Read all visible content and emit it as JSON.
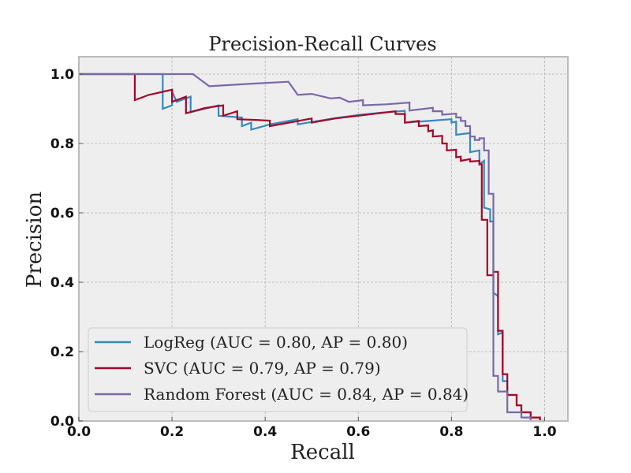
{
  "chart_data": {
    "type": "line",
    "title": "Precision-Recall Curves",
    "xlabel": "Recall",
    "ylabel": "Precision",
    "xlim": [
      0,
      1.05
    ],
    "ylim": [
      0,
      1.05
    ],
    "xticks": [
      0.0,
      0.2,
      0.4,
      0.6,
      0.8,
      1.0
    ],
    "yticks": [
      0.0,
      0.2,
      0.4,
      0.6,
      0.8,
      1.0
    ],
    "xtick_labels": [
      "0.0",
      "0.2",
      "0.4",
      "0.6",
      "0.8",
      "1.0"
    ],
    "ytick_labels": [
      "0.0",
      "0.2",
      "0.4",
      "0.6",
      "0.8",
      "1.0"
    ],
    "grid": true,
    "legend_position": "lower-left",
    "step": "post",
    "series": [
      {
        "name": "LogReg (AUC = 0.80, AP = 0.80)",
        "color": "#348ABD",
        "points": [
          [
            0.0,
            1.0
          ],
          [
            0.18,
            1.0
          ],
          [
            0.18,
            0.9
          ],
          [
            0.2,
            0.91
          ],
          [
            0.2,
            0.95
          ],
          [
            0.21,
            0.92
          ],
          [
            0.24,
            0.935
          ],
          [
            0.24,
            0.89
          ],
          [
            0.3,
            0.91
          ],
          [
            0.3,
            0.88
          ],
          [
            0.35,
            0.875
          ],
          [
            0.35,
            0.85
          ],
          [
            0.37,
            0.86
          ],
          [
            0.37,
            0.84
          ],
          [
            0.41,
            0.855
          ],
          [
            0.47,
            0.87
          ],
          [
            0.47,
            0.855
          ],
          [
            0.5,
            0.862
          ],
          [
            0.55,
            0.873
          ],
          [
            0.6,
            0.882
          ],
          [
            0.65,
            0.889
          ],
          [
            0.7,
            0.894
          ],
          [
            0.7,
            0.86
          ],
          [
            0.76,
            0.866
          ],
          [
            0.8,
            0.87
          ],
          [
            0.8,
            0.86
          ],
          [
            0.81,
            0.863
          ],
          [
            0.81,
            0.825
          ],
          [
            0.84,
            0.83
          ],
          [
            0.84,
            0.775
          ],
          [
            0.86,
            0.78
          ],
          [
            0.86,
            0.74
          ],
          [
            0.87,
            0.75
          ],
          [
            0.87,
            0.615
          ],
          [
            0.883,
            0.61
          ],
          [
            0.883,
            0.575
          ],
          [
            0.89,
            0.575
          ],
          [
            0.89,
            0.37
          ],
          [
            0.9,
            0.36
          ],
          [
            0.9,
            0.25
          ],
          [
            0.91,
            0.255
          ],
          [
            0.91,
            0.115
          ],
          [
            0.92,
            0.115
          ],
          [
            0.92,
            0.075
          ],
          [
            0.94,
            0.075
          ],
          [
            0.94,
            0.045
          ],
          [
            0.95,
            0.045
          ],
          [
            0.95,
            0.025
          ],
          [
            0.97,
            0.025
          ],
          [
            0.97,
            0.01
          ],
          [
            0.99,
            0.01
          ],
          [
            0.99,
            0.0
          ],
          [
            1.0,
            0.0
          ]
        ]
      },
      {
        "name": "SVC (AUC = 0.79, AP = 0.79)",
        "color": "#A60628",
        "points": [
          [
            0.0,
            1.0
          ],
          [
            0.12,
            1.0
          ],
          [
            0.12,
            0.925
          ],
          [
            0.15,
            0.94
          ],
          [
            0.2,
            0.955
          ],
          [
            0.2,
            0.92
          ],
          [
            0.23,
            0.935
          ],
          [
            0.23,
            0.887
          ],
          [
            0.27,
            0.902
          ],
          [
            0.31,
            0.91
          ],
          [
            0.31,
            0.88
          ],
          [
            0.34,
            0.893
          ],
          [
            0.34,
            0.87
          ],
          [
            0.38,
            0.868
          ],
          [
            0.41,
            0.866
          ],
          [
            0.41,
            0.85
          ],
          [
            0.5,
            0.872
          ],
          [
            0.5,
            0.86
          ],
          [
            0.55,
            0.872
          ],
          [
            0.6,
            0.88
          ],
          [
            0.68,
            0.893
          ],
          [
            0.68,
            0.885
          ],
          [
            0.7,
            0.885
          ],
          [
            0.7,
            0.86
          ],
          [
            0.73,
            0.865
          ],
          [
            0.73,
            0.85
          ],
          [
            0.75,
            0.852
          ],
          [
            0.75,
            0.835
          ],
          [
            0.76,
            0.838
          ],
          [
            0.76,
            0.82
          ],
          [
            0.78,
            0.822
          ],
          [
            0.78,
            0.8
          ],
          [
            0.79,
            0.8
          ],
          [
            0.79,
            0.78
          ],
          [
            0.81,
            0.782
          ],
          [
            0.81,
            0.76
          ],
          [
            0.82,
            0.762
          ],
          [
            0.82,
            0.75
          ],
          [
            0.84,
            0.755
          ],
          [
            0.84,
            0.748
          ],
          [
            0.86,
            0.75
          ],
          [
            0.86,
            0.74
          ],
          [
            0.865,
            0.74
          ],
          [
            0.865,
            0.58
          ],
          [
            0.877,
            0.58
          ],
          [
            0.877,
            0.42
          ],
          [
            0.89,
            0.42
          ],
          [
            0.89,
            0.43
          ],
          [
            0.9,
            0.43
          ],
          [
            0.9,
            0.26
          ],
          [
            0.91,
            0.26
          ],
          [
            0.91,
            0.135
          ],
          [
            0.92,
            0.135
          ],
          [
            0.92,
            0.075
          ],
          [
            0.94,
            0.075
          ],
          [
            0.94,
            0.045
          ],
          [
            0.95,
            0.045
          ],
          [
            0.95,
            0.025
          ],
          [
            0.97,
            0.025
          ],
          [
            0.97,
            0.01
          ],
          [
            0.99,
            0.01
          ],
          [
            0.99,
            0.0
          ],
          [
            1.0,
            0.0
          ]
        ]
      },
      {
        "name": "Random Forest (AUC = 0.84, AP = 0.84)",
        "color": "#7A68A6",
        "points": [
          [
            0.0,
            1.0
          ],
          [
            0.245,
            1.0
          ],
          [
            0.28,
            0.965
          ],
          [
            0.38,
            0.973
          ],
          [
            0.45,
            0.978
          ],
          [
            0.47,
            0.94
          ],
          [
            0.5,
            0.943
          ],
          [
            0.54,
            0.93
          ],
          [
            0.56,
            0.932
          ],
          [
            0.58,
            0.92
          ],
          [
            0.61,
            0.925
          ],
          [
            0.61,
            0.91
          ],
          [
            0.66,
            0.913
          ],
          [
            0.71,
            0.918
          ],
          [
            0.71,
            0.895
          ],
          [
            0.76,
            0.903
          ],
          [
            0.76,
            0.893
          ],
          [
            0.78,
            0.893
          ],
          [
            0.78,
            0.883
          ],
          [
            0.81,
            0.886
          ],
          [
            0.81,
            0.875
          ],
          [
            0.82,
            0.875
          ],
          [
            0.82,
            0.865
          ],
          [
            0.83,
            0.865
          ],
          [
            0.83,
            0.85
          ],
          [
            0.84,
            0.85
          ],
          [
            0.84,
            0.82
          ],
          [
            0.85,
            0.82
          ],
          [
            0.85,
            0.81
          ],
          [
            0.86,
            0.81
          ],
          [
            0.86,
            0.815
          ],
          [
            0.87,
            0.815
          ],
          [
            0.87,
            0.78
          ],
          [
            0.88,
            0.78
          ],
          [
            0.88,
            0.655
          ],
          [
            0.89,
            0.655
          ],
          [
            0.89,
            0.13
          ],
          [
            0.9,
            0.13
          ],
          [
            0.9,
            0.085
          ],
          [
            0.92,
            0.085
          ],
          [
            0.92,
            0.025
          ],
          [
            0.95,
            0.025
          ],
          [
            0.95,
            0.01
          ],
          [
            0.97,
            0.01
          ],
          [
            0.97,
            0.0
          ],
          [
            1.0,
            0.0
          ]
        ]
      }
    ]
  }
}
